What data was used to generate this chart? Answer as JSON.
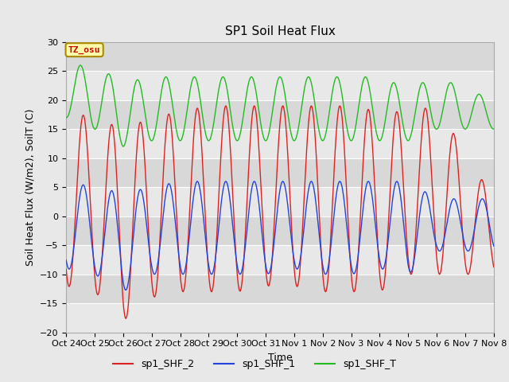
{
  "title": "SP1 Soil Heat Flux",
  "xlabel": "Time",
  "ylabel": "Soil Heat Flux (W/m2), SoilT (C)",
  "ylim": [
    -20,
    30
  ],
  "fig_bg_color": "#e8e8e8",
  "plot_bg_color": "#d8d8d8",
  "grid_color": "#ffffff",
  "tz_label": "TZ_osu",
  "tz_bg": "#ffffaa",
  "tz_border": "#aa8800",
  "tz_text_color": "#cc0000",
  "x_tick_labels": [
    "Oct 24",
    "Oct 25",
    "Oct 26",
    "Oct 27",
    "Oct 28",
    "Oct 29",
    "Oct 30",
    "Oct 31",
    "Nov 1",
    "Nov 2",
    "Nov 3",
    "Nov 4",
    "Nov 5",
    "Nov 6",
    "Nov 7",
    "Nov 8"
  ],
  "legend_entries": [
    "sp1_SHF_2",
    "sp1_SHF_1",
    "sp1_SHF_T"
  ],
  "line_colors": [
    "#dd2222",
    "#2244dd",
    "#22bb22"
  ],
  "peaks_shf2": [
    18,
    17,
    15,
    17,
    18,
    19,
    19,
    19,
    19,
    19,
    19,
    18,
    18,
    19,
    11
  ],
  "troughs_shf2": [
    -12,
    -13,
    -18,
    -14,
    -13,
    -13,
    -13,
    -12,
    -12,
    -13,
    -13,
    -13,
    -10,
    -10,
    -10
  ],
  "peaks_shf1": [
    6,
    5,
    4,
    5,
    6,
    6,
    6,
    6,
    6,
    6,
    6,
    6,
    6,
    3,
    3
  ],
  "troughs_shf1": [
    -9,
    -10,
    -13,
    -10,
    -10,
    -10,
    -10,
    -10,
    -9,
    -10,
    -10,
    -9,
    -10,
    -6,
    -6
  ],
  "peaks_shft": [
    26,
    26,
    23,
    24,
    24,
    24,
    24,
    24,
    24,
    24,
    24,
    24,
    22,
    24,
    22
  ],
  "troughs_shft": [
    17,
    15,
    12,
    13,
    13,
    13,
    13,
    13,
    13,
    13,
    13,
    13,
    13,
    15,
    15
  ],
  "shf2_peak_phase": 0.35,
  "shf1_peak_phase": 0.35,
  "shft_peak_phase": 0.25,
  "n_points": 2000,
  "n_days": 15
}
